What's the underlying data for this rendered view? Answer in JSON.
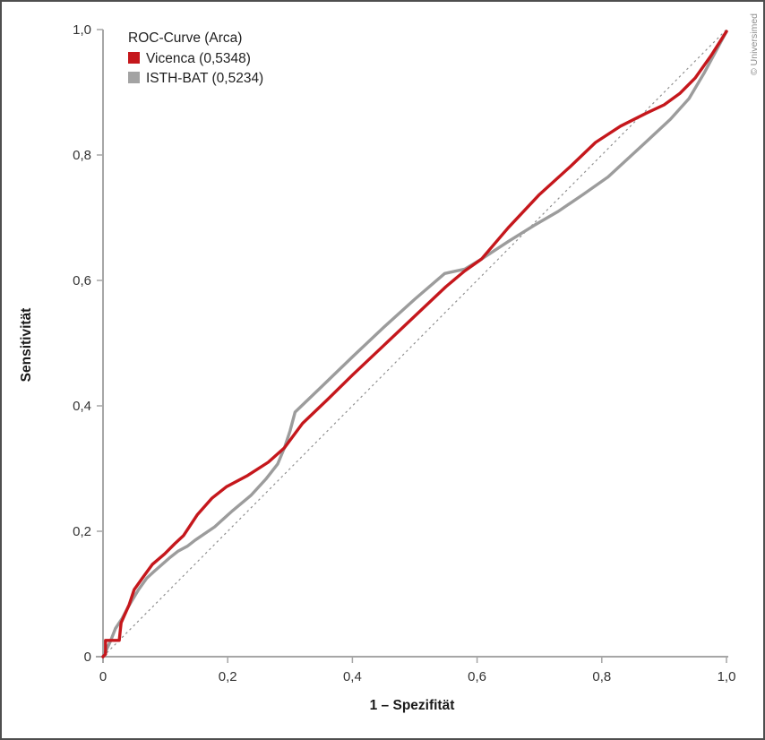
{
  "frame": {
    "copyright": "© Universimed"
  },
  "legend": {
    "title": "ROC-Curve (Arca)",
    "entries": [
      {
        "label": "Vicenca (0,5348)",
        "color": "#c5171c"
      },
      {
        "label": "ISTH-BAT (0,5234)",
        "color": "#a3a3a3"
      }
    ]
  },
  "chart_data": {
    "type": "line",
    "title": "ROC-Curve (Arca)",
    "xlabel": "1 – Spezifität",
    "ylabel": "Sensitivität",
    "xlim": [
      0,
      1
    ],
    "ylim": [
      0,
      1
    ],
    "grid": false,
    "legend_position": "top-left",
    "x_ticks": [
      {
        "v": 0,
        "label": "0"
      },
      {
        "v": 0.2,
        "label": "0,2"
      },
      {
        "v": 0.4,
        "label": "0,4"
      },
      {
        "v": 0.6,
        "label": "0,6"
      },
      {
        "v": 0.8,
        "label": "0,8"
      },
      {
        "v": 1.0,
        "label": "1,0"
      }
    ],
    "y_ticks": [
      {
        "v": 0,
        "label": "0"
      },
      {
        "v": 0.2,
        "label": "0,2"
      },
      {
        "v": 0.4,
        "label": "0,4"
      },
      {
        "v": 0.6,
        "label": "0,6"
      },
      {
        "v": 0.8,
        "label": "0,8"
      },
      {
        "v": 1.0,
        "label": "1,0"
      }
    ],
    "reference_line": {
      "from": [
        0,
        0
      ],
      "to": [
        1,
        1
      ],
      "style": "dashed",
      "color": "#8f8f8f"
    },
    "series": [
      {
        "name": "Vicenca",
        "auc": "0,5348",
        "color": "#c5171c",
        "points": [
          [
            0.0,
            0.0
          ],
          [
            0.004,
            0.004
          ],
          [
            0.004,
            0.026
          ],
          [
            0.026,
            0.026
          ],
          [
            0.029,
            0.054
          ],
          [
            0.042,
            0.083
          ],
          [
            0.05,
            0.107
          ],
          [
            0.063,
            0.125
          ],
          [
            0.079,
            0.147
          ],
          [
            0.099,
            0.164
          ],
          [
            0.115,
            0.18
          ],
          [
            0.129,
            0.193
          ],
          [
            0.151,
            0.226
          ],
          [
            0.175,
            0.253
          ],
          [
            0.198,
            0.271
          ],
          [
            0.232,
            0.289
          ],
          [
            0.265,
            0.31
          ],
          [
            0.291,
            0.333
          ],
          [
            0.32,
            0.372
          ],
          [
            0.36,
            0.41
          ],
          [
            0.4,
            0.449
          ],
          [
            0.45,
            0.496
          ],
          [
            0.5,
            0.543
          ],
          [
            0.55,
            0.59
          ],
          [
            0.58,
            0.615
          ],
          [
            0.607,
            0.634
          ],
          [
            0.65,
            0.684
          ],
          [
            0.7,
            0.737
          ],
          [
            0.75,
            0.782
          ],
          [
            0.79,
            0.82
          ],
          [
            0.83,
            0.846
          ],
          [
            0.87,
            0.866
          ],
          [
            0.9,
            0.88
          ],
          [
            0.925,
            0.898
          ],
          [
            0.95,
            0.923
          ],
          [
            0.975,
            0.958
          ],
          [
            1.0,
            0.997
          ]
        ]
      },
      {
        "name": "ISTH-BAT",
        "auc": "0,5234",
        "color": "#9c9c9c",
        "points": [
          [
            0.0,
            0.0
          ],
          [
            0.005,
            0.01
          ],
          [
            0.012,
            0.025
          ],
          [
            0.02,
            0.045
          ],
          [
            0.03,
            0.06
          ],
          [
            0.042,
            0.082
          ],
          [
            0.057,
            0.107
          ],
          [
            0.07,
            0.125
          ],
          [
            0.082,
            0.136
          ],
          [
            0.106,
            0.157
          ],
          [
            0.12,
            0.168
          ],
          [
            0.135,
            0.176
          ],
          [
            0.148,
            0.186
          ],
          [
            0.179,
            0.207
          ],
          [
            0.208,
            0.233
          ],
          [
            0.237,
            0.257
          ],
          [
            0.261,
            0.283
          ],
          [
            0.28,
            0.307
          ],
          [
            0.291,
            0.333
          ],
          [
            0.3,
            0.36
          ],
          [
            0.308,
            0.39
          ],
          [
            0.35,
            0.43
          ],
          [
            0.4,
            0.478
          ],
          [
            0.45,
            0.525
          ],
          [
            0.5,
            0.57
          ],
          [
            0.548,
            0.611
          ],
          [
            0.58,
            0.618
          ],
          [
            0.607,
            0.634
          ],
          [
            0.65,
            0.662
          ],
          [
            0.692,
            0.688
          ],
          [
            0.73,
            0.71
          ],
          [
            0.77,
            0.737
          ],
          [
            0.81,
            0.765
          ],
          [
            0.868,
            0.818
          ],
          [
            0.91,
            0.857
          ],
          [
            0.94,
            0.89
          ],
          [
            0.965,
            0.932
          ],
          [
            1.0,
            0.997
          ]
        ]
      }
    ]
  }
}
